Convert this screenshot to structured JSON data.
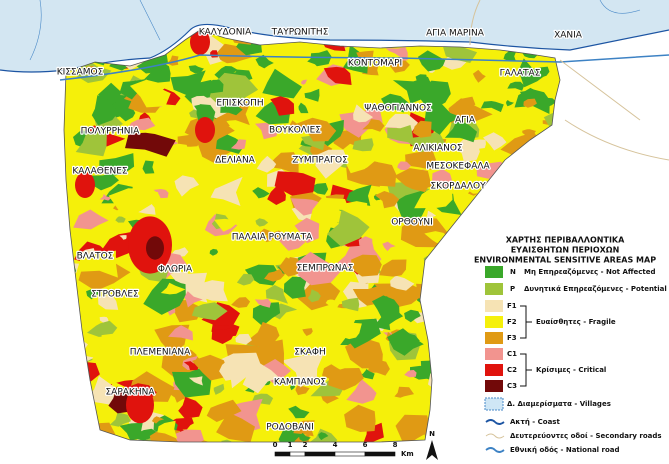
{
  "map": {
    "places": [
      "ΚΑΛΥΔΟΝΙΑ",
      "ΤΑΥΡΩΝΙΤΗΣ",
      "ΑΓΙΑ ΜΑΡΙΝΑ",
      "ΧΑΝΙΑ",
      "ΚΙΣΣΑΜΟΣ",
      "ΚΟΝΤΟΜΑΡΙ",
      "ΓΑΛΑΤΑΣ",
      "ΕΠΙΣΚΟΠΗ",
      "ΨΑΘΟΓΙΑΝΝΟΣ",
      "ΑΓΙΑ",
      "ΠΟΛΥΡΡΗΝΙΑ",
      "ΒΟΥΚΟΛΙΕΣ",
      "ΔΕΛΙΑΝΑ",
      "ΖΥΜΠΡΑΓΟΣ",
      "ΑΛΙΚΙΑΝΟΣ",
      "ΚΑΛΑΘΕΝΕΣ",
      "ΜΕΣΟΚΕΦΑΛΑ",
      "ΣΚΟΡΔΑΛΟΥ",
      "ΠΑΛΑΙΑ ΡΟΥΜΑΤΑ",
      "ΟΡΘΟΥΝΙ",
      "ΒΛΑΤΟΣ",
      "ΣΕΜΠΡΩΝΑΣ",
      "ΦΛΩΡΙΑ",
      "ΣΤΡΟΒΛΕΣ",
      "ΠΛΕΜΕΝΙΑΝΑ",
      "ΣΚΑΦΗ",
      "ΣΑΡΑΚΗΝΑ",
      "ΚΑΜΠΑΝΟΣ",
      "ΡΟΔΟΒΑΝΙ"
    ],
    "legend": {
      "title": [
        "ΧΑΡΤΗΣ ΠΕΡΙΒΑΛΛΟΝΤΙΚΑ",
        "ΕΥΑΙΣΘΗΤΩΝ ΠΕΡΙΟΧΩΝ",
        "ENVIRONMENTAL SENSITIVE AREAS MAP"
      ],
      "rows": [
        {
          "code": "N",
          "color": "#3aa82a",
          "label": "Μη Επηρεαζόμενες - Not Affected"
        },
        {
          "code": "P",
          "color": "#9fc43a",
          "label": "Δυνητικά Επηρεαζόμενες - Potential"
        },
        {
          "label": "Ευαίσθητες - Fragile",
          "classes": [
            {
              "code": "F1",
              "color": "#f6e3b4"
            },
            {
              "code": "F2",
              "color": "#f5f00a"
            },
            {
              "code": "F3",
              "color": "#e09a14"
            }
          ]
        },
        {
          "label": "Κρίσιμες - Critical",
          "classes": [
            {
              "code": "C1",
              "color": "#f2948f"
            },
            {
              "code": "C2",
              "color": "#e0130d"
            },
            {
              "code": "C3",
              "color": "#720909"
            }
          ]
        }
      ],
      "villages": "Δ. Διαμερίσματα - Villages",
      "lines": [
        {
          "label": "Ακτή - Coast",
          "color": "#1d55a3"
        },
        {
          "label": "Δευτερεύοντες οδοί - Secondary roads",
          "color": "#d6c39b"
        },
        {
          "label": "Εθνική οδός - National road",
          "color": "#3d82c4"
        }
      ]
    },
    "scale": {
      "ticks": [
        0,
        1,
        2,
        4,
        6,
        8
      ],
      "unit": "Km"
    },
    "north": "N"
  }
}
